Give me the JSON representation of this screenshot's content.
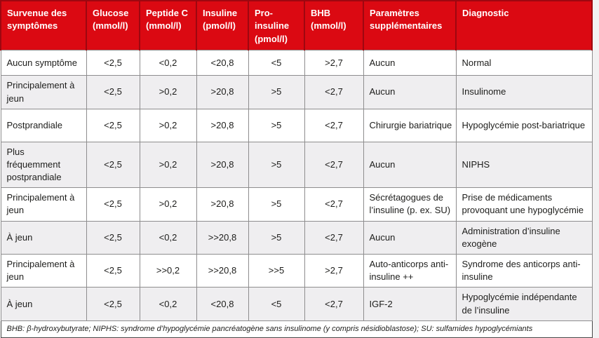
{
  "theme": {
    "page_bg": "#f2f1f2",
    "header_bg": "#db0912",
    "header_divider": "#9e0710",
    "header_text": "#ffffff",
    "row_bg": "#ffffff",
    "row_alt_bg": "#efeef0",
    "grid_color": "#8e8d8e",
    "outer_border": "#464646",
    "text_color": "#1d1d1b"
  },
  "table": {
    "columns": [
      {
        "id": "symptomes",
        "label": "Survenue des\nsymptômes"
      },
      {
        "id": "glucose",
        "label": "Glucose\n(mmol/l)"
      },
      {
        "id": "peptide-c",
        "label": "Peptide C\n(mmol/l)"
      },
      {
        "id": "insuline",
        "label": "Insuline\n(pmol/l)"
      },
      {
        "id": "pro-insuline",
        "label": "Pro-\ninsuline\n(pmol/l)"
      },
      {
        "id": "bhb",
        "label": "BHB\n(mmol/l)"
      },
      {
        "id": "parametres",
        "label": "Paramètres\nsupplémentaires"
      },
      {
        "id": "diagnostic",
        "label": "Diagnostic"
      }
    ],
    "rows": [
      {
        "cells": [
          "Aucun symptôme",
          "<2,5",
          "<0,2",
          "<20,8",
          "<5",
          ">2,7",
          "Aucun",
          "Normal"
        ]
      },
      {
        "cells": [
          "Principalement à jeun",
          "<2,5",
          ">0,2",
          ">20,8",
          ">5",
          "<2,7",
          "Aucun",
          "Insulinome"
        ]
      },
      {
        "cells": [
          "Postprandiale",
          "<2,5",
          ">0,2",
          ">20,8",
          ">5",
          "<2,7",
          "Chirurgie bariatrique",
          "Hypoglycémie post-bariatrique"
        ]
      },
      {
        "cells": [
          "Plus fréquemment postprandiale",
          "<2,5",
          ">0,2",
          ">20,8",
          ">5",
          "<2,7",
          "Aucun",
          "NIPHS"
        ]
      },
      {
        "cells": [
          "Principalement à jeun",
          "<2,5",
          ">0,2",
          ">20,8",
          ">5",
          "<2,7",
          "Sécrétagogues de l’insuline (p. ex. SU)",
          "Prise de médicaments provoquant une hypoglycémie"
        ]
      },
      {
        "cells": [
          "À jeun",
          "<2,5",
          "<0,2",
          ">>20,8",
          ">5",
          "<2,7",
          "Aucun",
          "Administration d’insuline exogène"
        ]
      },
      {
        "cells": [
          "Principalement à jeun",
          "<2,5",
          ">>0,2",
          ">>20,8",
          ">>5",
          ">2,7",
          "Auto-anticorps anti-insuline ++",
          "Syndrome des anticorps anti-insuline"
        ]
      },
      {
        "cells": [
          "À jeun",
          "<2,5",
          "<0,2",
          "<20,8",
          "<5",
          "<2,7",
          "IGF-2",
          "Hypoglycémie indépendante de l’insuline"
        ]
      }
    ],
    "footnote": "BHB: β-hydroxybutyrate; NIPHS: syndrome d’hypoglycémie pancréatogène sans insulinome (y compris nésidioblastose); SU: sulfamides hypoglycémiants"
  }
}
